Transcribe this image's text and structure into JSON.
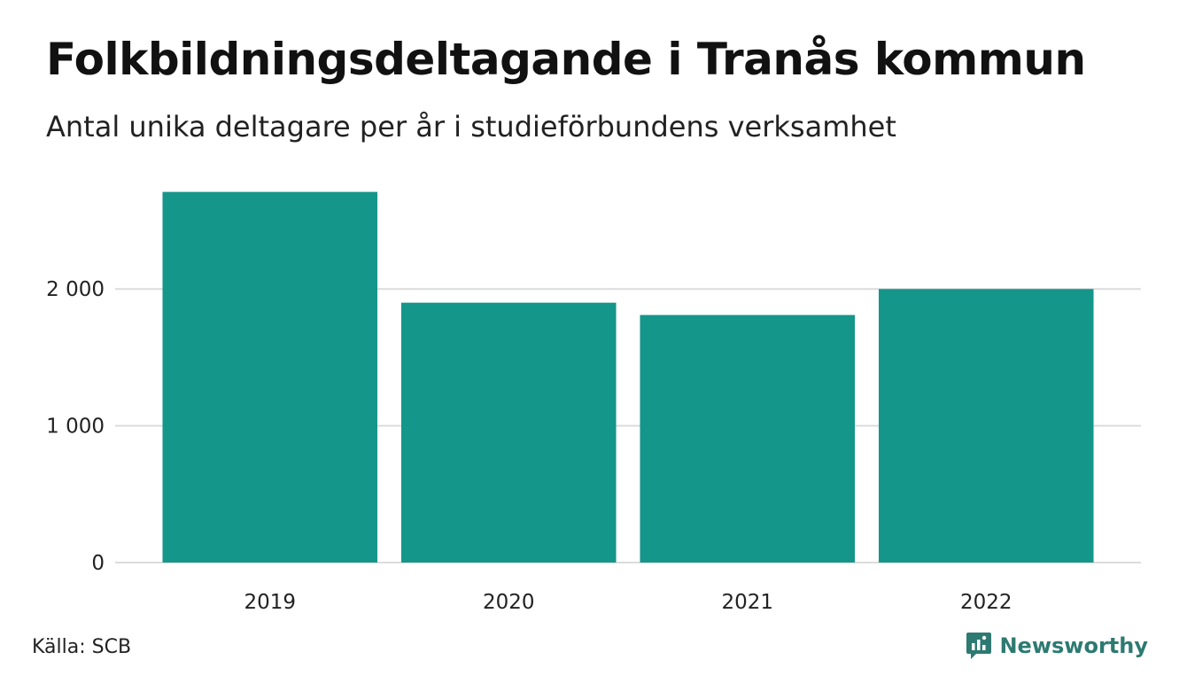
{
  "colors": {
    "bar": "#15968a",
    "grid": "#dcdcdc",
    "brand": "#2d7a72"
  },
  "source": "Källa: SCB",
  "brand": {
    "name": "Newsworthy",
    "icon": "newsworthy-logo-icon"
  },
  "chart_data": {
    "type": "bar",
    "title": "Folkbildningsdeltagande i Tranås kommun",
    "subtitle": "Antal unika deltagare per år i studieförbundens verksamhet",
    "categories": [
      "2019",
      "2020",
      "2021",
      "2022"
    ],
    "values": [
      2710,
      1900,
      1810,
      2000
    ],
    "ylim": [
      0,
      2850
    ],
    "yticks": [
      0,
      1000,
      2000
    ],
    "ytick_labels": [
      "0",
      "1 000",
      "2 000"
    ],
    "grid": true,
    "legend": "none",
    "xlabel": "",
    "ylabel": ""
  }
}
